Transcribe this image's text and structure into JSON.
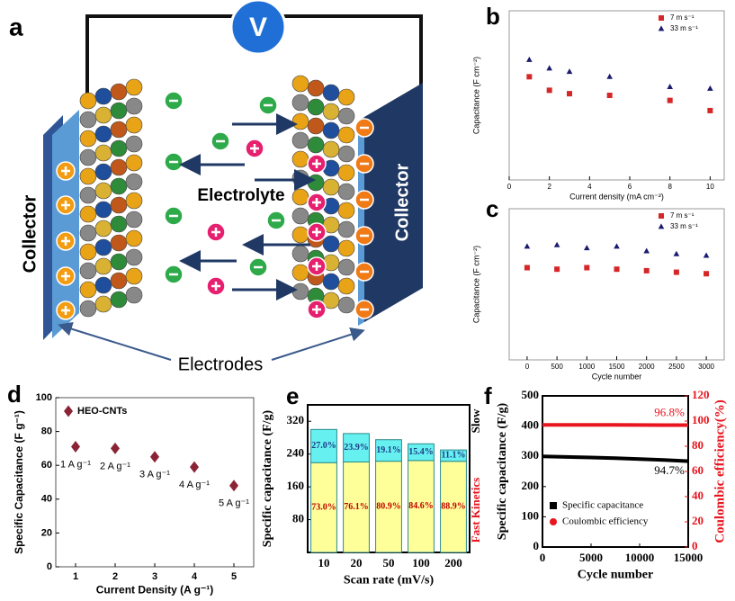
{
  "diagram": {
    "label": "a",
    "meter": "V",
    "left_collector": "Collector",
    "right_collector": "Collector",
    "electrolyte": "Electrolyte",
    "electrodes": "Electrodes"
  },
  "chart_data": [
    {
      "type": "scatter",
      "panel_label": "b",
      "x_label": "Current density (mA cm⁻²)",
      "y_label": "Capacitance (F cm⁻²)",
      "xlim": [
        0,
        10.7
      ],
      "xticks": [
        0,
        2,
        4,
        6,
        8,
        10
      ],
      "ylim": [
        0,
        1
      ],
      "legend": "upper right",
      "series": [
        {
          "name": "7 m s⁻¹",
          "color": "#d62728",
          "marker": "square",
          "x": [
            1,
            2,
            3,
            5,
            8,
            10
          ],
          "values": [
            0.61,
            0.53,
            0.51,
            0.5,
            0.47,
            0.41
          ]
        },
        {
          "name": "33 m s⁻¹",
          "color": "#1a1a6e",
          "marker": "triangle",
          "x": [
            1,
            2,
            3,
            5,
            8,
            10
          ],
          "values": [
            0.71,
            0.66,
            0.64,
            0.61,
            0.55,
            0.54
          ]
        }
      ]
    },
    {
      "type": "scatter",
      "panel_label": "c",
      "x_label": "Cycle number",
      "y_label": "Capacitance (F cm⁻²)",
      "xlim": [
        -300,
        3300
      ],
      "xticks": [
        0,
        500,
        1000,
        1500,
        2000,
        2500,
        3000
      ],
      "ylim": [
        0,
        1
      ],
      "legend": "upper right",
      "series": [
        {
          "name": "7 m s⁻¹",
          "color": "#d62728",
          "marker": "square",
          "x": [
            0,
            500,
            1000,
            1500,
            2000,
            2500,
            3000
          ],
          "values": [
            0.61,
            0.6,
            0.61,
            0.6,
            0.59,
            0.58,
            0.57
          ]
        },
        {
          "name": "33 m s⁻¹",
          "color": "#1a1a6e",
          "marker": "triangle",
          "x": [
            0,
            500,
            1000,
            1500,
            2000,
            2500,
            3000
          ],
          "values": [
            0.75,
            0.76,
            0.74,
            0.75,
            0.72,
            0.7,
            0.69
          ]
        }
      ]
    },
    {
      "type": "scatter",
      "panel_label": "d",
      "x_label": "Current Density (A g⁻¹)",
      "y_label": "Specific Capacitance (F g⁻¹)",
      "xlim": [
        0.5,
        5.5
      ],
      "xticks": [
        1,
        2,
        3,
        4,
        5
      ],
      "ylim": [
        0,
        100
      ],
      "yticks": [
        0,
        20,
        40,
        60,
        80,
        100
      ],
      "legend": "upper left",
      "series": [
        {
          "name": "HEO-CNTs",
          "color": "#8b2335",
          "marker": "diamond",
          "x": [
            1,
            2,
            3,
            4,
            5
          ],
          "values": [
            71,
            70,
            65,
            59,
            48
          ],
          "point_labels": [
            "1 A g⁻¹",
            "2 A g⁻¹",
            "3 A g⁻¹",
            "4 A g⁻¹",
            "5 A g⁻¹"
          ]
        }
      ]
    },
    {
      "type": "bar",
      "stacked": true,
      "panel_label": "e",
      "x_label": "Scan rate (mV/s)",
      "y_label": "Specific capacitance (F/g)",
      "categories": [
        "10",
        "20",
        "50",
        "100",
        "200"
      ],
      "ylim": [
        0,
        360
      ],
      "yticks": [
        80,
        160,
        240,
        320
      ],
      "series": [
        {
          "name": "Fast Kinetics",
          "color": "#ffff99",
          "label_color": "#c00000",
          "values": [
            219,
            220.7,
            222.5,
            224.2,
            222.3
          ],
          "percent_labels": [
            "73.0%",
            "76.1%",
            "80.9%",
            "84.6%",
            "88.9%"
          ]
        },
        {
          "name": "Slow",
          "color": "#66f0f0",
          "label_color": "#1f3c88",
          "values": [
            81,
            69.3,
            52.5,
            40.8,
            27.7
          ],
          "percent_labels": [
            "27.0%",
            "23.9%",
            "19.1%",
            "15.4%",
            "11.1%"
          ]
        }
      ]
    },
    {
      "type": "line",
      "panel_label": "f",
      "x_label": "Cycle number",
      "y_label": "Specific capacitance (F/g)",
      "y2_label": "Coulombic efficiency(%)",
      "x": [
        0,
        2500,
        5000,
        7500,
        10000,
        12500,
        15000
      ],
      "xlim": [
        0,
        15000
      ],
      "xticks": [
        0,
        5000,
        10000,
        15000
      ],
      "ylim": [
        0,
        500
      ],
      "yticks": [
        0,
        100,
        200,
        300,
        400,
        500
      ],
      "y2lim": [
        0,
        120
      ],
      "y2ticks": [
        0,
        20,
        40,
        60,
        80,
        100,
        120
      ],
      "legend": "lower left",
      "annotations": [
        "96.8%",
        "94.7%"
      ],
      "series": [
        {
          "name": "Specific capacitance",
          "color": "#000000",
          "marker": "square",
          "values": [
            300,
            298,
            296,
            294,
            291,
            288,
            284
          ]
        },
        {
          "name": "Coulombic efficiency",
          "color": "#e8141e",
          "marker": "circle",
          "axis": "y2",
          "values": [
            97,
            97,
            97,
            97,
            96.9,
            96.8,
            96.8
          ]
        }
      ]
    }
  ]
}
